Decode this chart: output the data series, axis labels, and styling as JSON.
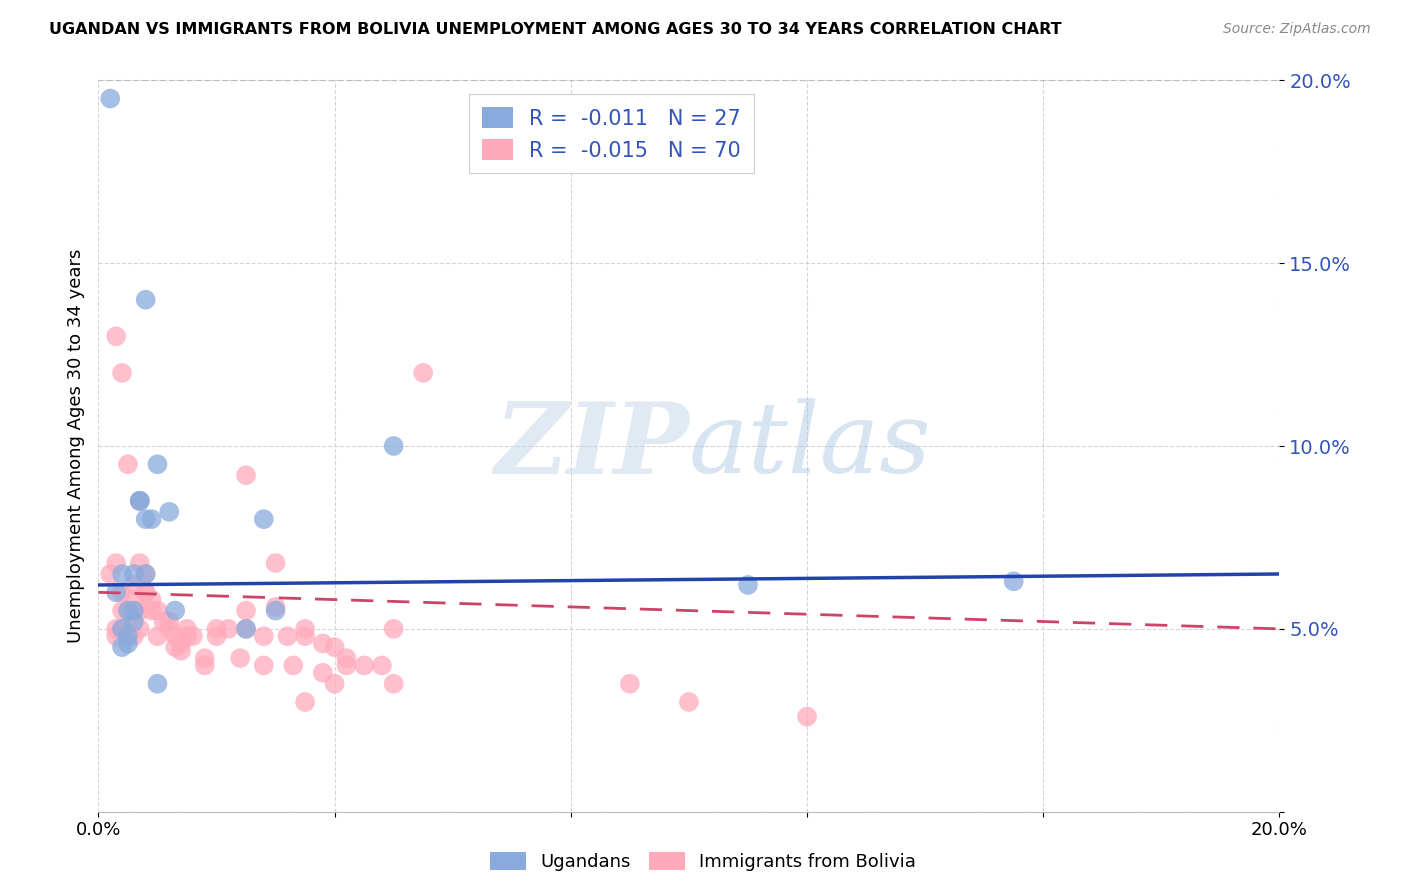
{
  "title": "UGANDAN VS IMMIGRANTS FROM BOLIVIA UNEMPLOYMENT AMONG AGES 30 TO 34 YEARS CORRELATION CHART",
  "source": "Source: ZipAtlas.com",
  "ylabel": "Unemployment Among Ages 30 to 34 years",
  "xlim": [
    0.0,
    0.2
  ],
  "ylim": [
    0.0,
    0.2
  ],
  "legend_R_blue": "-0.011",
  "legend_N_blue": "27",
  "legend_R_pink": "-0.015",
  "legend_N_pink": "70",
  "blue_scatter_color": "#88AADD",
  "pink_scatter_color": "#FFAABB",
  "blue_line_color": "#2244AA",
  "pink_line_color": "#CC4466",
  "text_color": "#3355BB",
  "watermark_color": "#C8D8F0",
  "ugandan_x": [
    0.003,
    0.008,
    0.004,
    0.005,
    0.006,
    0.004,
    0.005,
    0.007,
    0.008,
    0.006,
    0.005,
    0.007,
    0.009,
    0.008,
    0.01,
    0.012,
    0.013,
    0.01,
    0.025,
    0.028,
    0.03,
    0.05,
    0.11,
    0.155,
    0.002,
    0.006,
    0.004
  ],
  "ugandan_y": [
    0.06,
    0.14,
    0.065,
    0.055,
    0.052,
    0.05,
    0.048,
    0.085,
    0.08,
    0.055,
    0.046,
    0.085,
    0.08,
    0.065,
    0.095,
    0.082,
    0.055,
    0.035,
    0.05,
    0.08,
    0.055,
    0.1,
    0.062,
    0.063,
    0.195,
    0.065,
    0.045
  ],
  "bolivia_x": [
    0.002,
    0.003,
    0.004,
    0.003,
    0.004,
    0.005,
    0.003,
    0.004,
    0.005,
    0.006,
    0.003,
    0.004,
    0.005,
    0.006,
    0.007,
    0.008,
    0.005,
    0.006,
    0.007,
    0.006,
    0.007,
    0.008,
    0.009,
    0.007,
    0.008,
    0.009,
    0.01,
    0.01,
    0.011,
    0.012,
    0.013,
    0.012,
    0.013,
    0.014,
    0.015,
    0.014,
    0.015,
    0.016,
    0.018,
    0.02,
    0.018,
    0.02,
    0.022,
    0.025,
    0.024,
    0.025,
    0.028,
    0.03,
    0.028,
    0.032,
    0.035,
    0.033,
    0.035,
    0.038,
    0.04,
    0.038,
    0.042,
    0.045,
    0.05,
    0.048,
    0.025,
    0.03,
    0.04,
    0.055,
    0.05,
    0.042,
    0.035,
    0.1,
    0.12,
    0.09
  ],
  "bolivia_y": [
    0.065,
    0.13,
    0.12,
    0.068,
    0.06,
    0.095,
    0.05,
    0.05,
    0.055,
    0.055,
    0.048,
    0.055,
    0.05,
    0.058,
    0.085,
    0.06,
    0.055,
    0.062,
    0.055,
    0.048,
    0.068,
    0.065,
    0.055,
    0.05,
    0.06,
    0.058,
    0.055,
    0.048,
    0.052,
    0.05,
    0.048,
    0.052,
    0.045,
    0.046,
    0.05,
    0.044,
    0.048,
    0.048,
    0.042,
    0.05,
    0.04,
    0.048,
    0.05,
    0.055,
    0.042,
    0.05,
    0.048,
    0.056,
    0.04,
    0.048,
    0.05,
    0.04,
    0.048,
    0.046,
    0.045,
    0.038,
    0.042,
    0.04,
    0.035,
    0.04,
    0.092,
    0.068,
    0.035,
    0.12,
    0.05,
    0.04,
    0.03,
    0.03,
    0.026,
    0.035
  ]
}
